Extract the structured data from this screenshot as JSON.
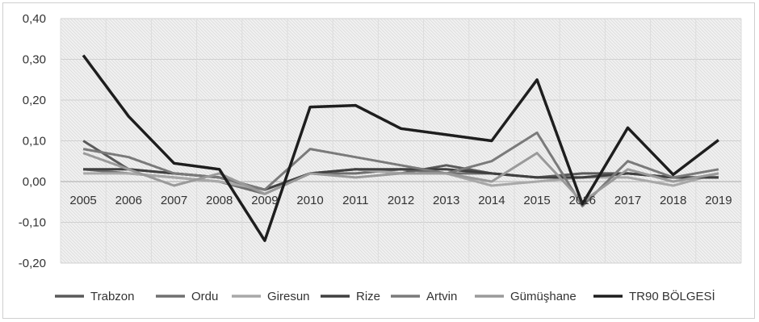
{
  "chart_data": {
    "type": "line",
    "title": "",
    "xlabel": "",
    "ylabel": "",
    "x": [
      "2005",
      "2006",
      "2007",
      "2008",
      "2009",
      "2010",
      "2011",
      "2012",
      "2013",
      "2014",
      "2015",
      "2016",
      "2017",
      "2018",
      "2019"
    ],
    "y_ticks": [
      "0,40",
      "0,30",
      "0,20",
      "0,10",
      "0,00",
      "-0,10",
      "-0,20"
    ],
    "ylim": [
      -0.2,
      0.4
    ],
    "grid": true,
    "legend_position": "bottom",
    "series": [
      {
        "name": "Trabzon",
        "color": "#5a5a5a",
        "width": 3,
        "values": [
          0.1,
          0.03,
          0.02,
          0.01,
          -0.02,
          0.02,
          0.03,
          0.02,
          0.04,
          0.02,
          0.01,
          0.02,
          0.02,
          0.01,
          0.01
        ]
      },
      {
        "name": "Ordu",
        "color": "#707070",
        "width": 3,
        "values": [
          0.03,
          0.02,
          0.01,
          0.0,
          -0.03,
          0.02,
          0.02,
          0.03,
          0.02,
          0.02,
          0.01,
          0.01,
          0.02,
          0.01,
          0.01
        ]
      },
      {
        "name": "Giresun",
        "color": "#a8a8a8",
        "width": 3,
        "values": [
          0.02,
          0.02,
          0.01,
          0.0,
          -0.02,
          0.02,
          0.03,
          0.02,
          0.02,
          -0.01,
          0.0,
          0.01,
          0.01,
          -0.01,
          0.02
        ]
      },
      {
        "name": "Rize",
        "color": "#404040",
        "width": 3,
        "values": [
          0.03,
          0.03,
          0.02,
          0.01,
          -0.02,
          0.02,
          0.03,
          0.03,
          0.03,
          0.02,
          0.01,
          0.01,
          0.02,
          0.01,
          0.01
        ]
      },
      {
        "name": "Artvin",
        "color": "#7a7a7a",
        "width": 3,
        "values": [
          0.08,
          0.06,
          0.02,
          0.01,
          -0.02,
          0.08,
          0.06,
          0.04,
          0.02,
          0.05,
          0.12,
          -0.06,
          0.05,
          0.01,
          0.03
        ]
      },
      {
        "name": "Gümüşhane",
        "color": "#9a9a9a",
        "width": 3,
        "values": [
          0.07,
          0.03,
          -0.01,
          0.02,
          -0.03,
          0.02,
          0.01,
          0.02,
          0.02,
          0.0,
          0.07,
          -0.05,
          0.03,
          0.0,
          0.02
        ]
      },
      {
        "name": "TR90 BÖLGESİ",
        "color": "#1e1e1e",
        "width": 3.5,
        "values": [
          0.31,
          0.16,
          0.045,
          0.03,
          -0.145,
          0.183,
          0.187,
          0.13,
          0.115,
          0.1,
          0.25,
          -0.055,
          0.132,
          0.017,
          0.102
        ]
      }
    ]
  }
}
